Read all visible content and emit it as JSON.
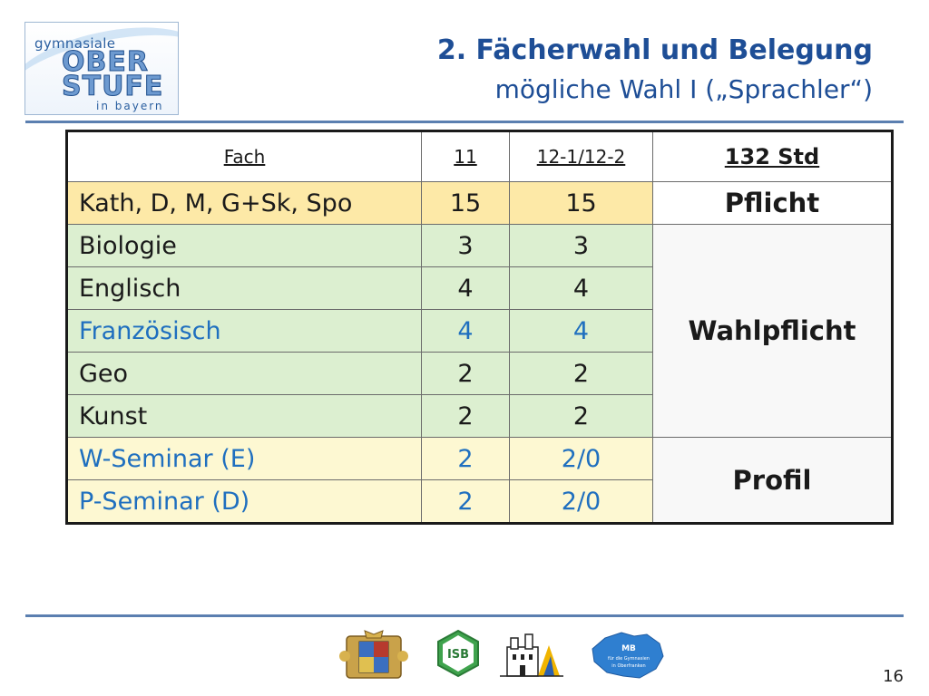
{
  "logo": {
    "line1": "gymnasiale",
    "line2": "OBER",
    "line3": "STUFE",
    "line4": "in bayern"
  },
  "title": {
    "line1": "2. Fächerwahl und Belegung",
    "line2": "mögliche Wahl  I („Sprachler“)"
  },
  "table": {
    "headers": [
      "Fach",
      "11",
      "12-1/12-2",
      "132 Std"
    ],
    "rows": [
      {
        "fach": "Kath, D, M, G+Sk, Spo",
        "y11": "15",
        "y12": "15"
      },
      {
        "fach": "Biologie",
        "y11": "3",
        "y12": "3"
      },
      {
        "fach": "Englisch",
        "y11": "4",
        "y12": "4"
      },
      {
        "fach": "Französisch",
        "y11": "4",
        "y12": "4"
      },
      {
        "fach": "Geo",
        "y11": "2",
        "y12": "2"
      },
      {
        "fach": "Kunst",
        "y11": "2",
        "y12": "2"
      },
      {
        "fach": "W-Seminar (E)",
        "y11": "2",
        "y12": "2/0"
      },
      {
        "fach": "P-Seminar (D)",
        "y11": "2",
        "y12": "2/0"
      }
    ],
    "categories": {
      "pflicht": "Pflicht",
      "wahlpflicht": "Wahlpflicht",
      "profil": "Profil"
    }
  },
  "footer": {
    "logos": [
      "coat-of-arms-icon",
      "isb-icon",
      "castle-icon",
      "mb-oberfranken-icon"
    ],
    "mb_text": [
      "MB",
      "für die Gymnasien",
      "in Oberfranken"
    ],
    "isb_text": "ISB",
    "page_number": "16"
  },
  "colors": {
    "title": "#1e4e96",
    "rule": "#5b7fb0",
    "orange_row": "#fde9a7",
    "green_row": "#dcefd0",
    "yellow_row": "#fdf8d2",
    "blue_text": "#1f6fbf"
  }
}
